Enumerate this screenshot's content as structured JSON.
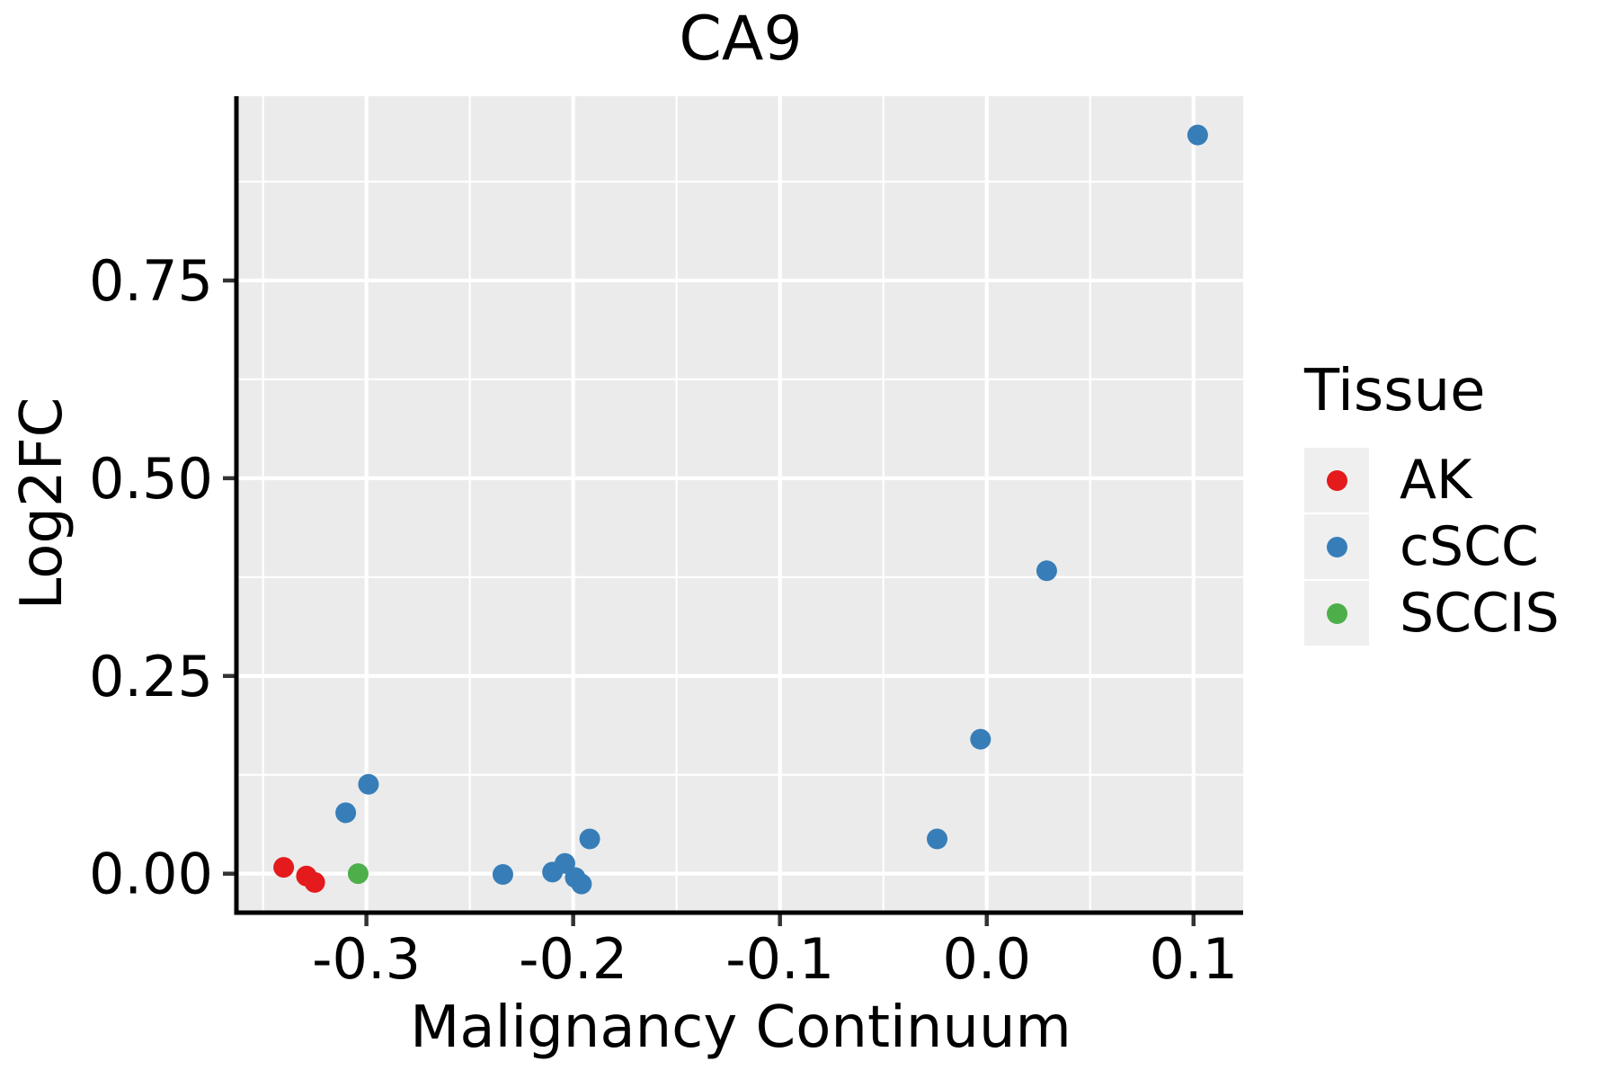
{
  "chart_data": {
    "type": "scatter",
    "title": "CA9",
    "xlabel": "Malignancy Continuum",
    "ylabel": "Log2FC",
    "xlim": [
      -0.362,
      0.124
    ],
    "ylim": [
      -0.047,
      0.983
    ],
    "grid": true,
    "panel_bg": "#ebebeb",
    "grid_color": "#ffffff",
    "axis_color": "#000000",
    "tick_color": "#333333",
    "x_major_ticks": [
      -0.3,
      -0.2,
      -0.1,
      0.0,
      0.1
    ],
    "x_tick_labels": [
      "-0.3",
      "-0.2",
      "-0.1",
      "0.0",
      "0.1"
    ],
    "x_minor_ticks": [
      -0.35,
      -0.25,
      -0.15,
      -0.05,
      0.05
    ],
    "y_major_ticks": [
      0.0,
      0.25,
      0.5,
      0.75
    ],
    "y_tick_labels": [
      "0.00",
      "0.25",
      "0.50",
      "0.75"
    ],
    "y_minor_ticks": [
      0.125,
      0.375,
      0.625,
      0.875
    ],
    "legend": {
      "title": "Tissue",
      "position": "right",
      "key_bg": "#efefef"
    },
    "series": [
      {
        "name": "AK",
        "color": "#e41a1c",
        "points": [
          [
            -0.34,
            0.008
          ],
          [
            -0.329,
            -0.003
          ],
          [
            -0.325,
            -0.011
          ]
        ]
      },
      {
        "name": "cSCC",
        "color": "#377eb8",
        "points": [
          [
            -0.31,
            0.077
          ],
          [
            -0.299,
            0.113
          ],
          [
            -0.234,
            -0.001
          ],
          [
            -0.21,
            0.002
          ],
          [
            -0.204,
            0.013
          ],
          [
            -0.199,
            -0.005
          ],
          [
            -0.196,
            -0.013
          ],
          [
            -0.192,
            0.044
          ],
          [
            -0.024,
            0.044
          ],
          [
            -0.003,
            0.17
          ],
          [
            0.029,
            0.383
          ],
          [
            0.102,
            0.934
          ]
        ]
      },
      {
        "name": "SCCIS",
        "color": "#4daf4a",
        "points": [
          [
            -0.304,
            0.0
          ]
        ]
      }
    ]
  }
}
